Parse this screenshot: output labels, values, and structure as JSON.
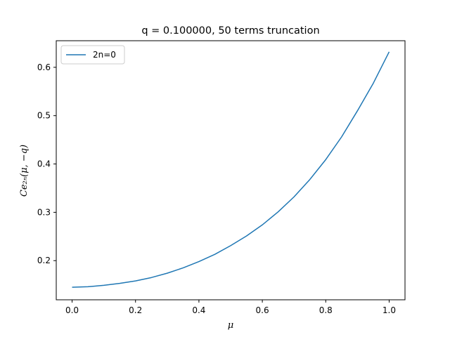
{
  "chart_data": {
    "type": "line",
    "title": "q = 0.100000, 50 terms truncation",
    "xlabel": "μ",
    "ylabel": "Ce₂ₙ(μ, −q)",
    "xlim": [
      -0.05,
      1.05
    ],
    "ylim": [
      0.119,
      0.655
    ],
    "xticks": [
      0.0,
      0.2,
      0.4,
      0.6,
      0.8,
      1.0
    ],
    "xtick_labels": [
      "0.0",
      "0.2",
      "0.4",
      "0.6",
      "0.8",
      "1.0"
    ],
    "yticks": [
      0.2,
      0.3,
      0.4,
      0.5,
      0.6
    ],
    "ytick_labels": [
      "0.2",
      "0.3",
      "0.4",
      "0.5",
      "0.6"
    ],
    "grid": false,
    "legend_position": "upper-left",
    "series": [
      {
        "name": "2n=0",
        "color": "#1f77b4",
        "x": [
          0.0,
          0.05,
          0.1,
          0.15,
          0.2,
          0.25,
          0.3,
          0.35,
          0.4,
          0.45,
          0.5,
          0.55,
          0.6,
          0.65,
          0.7,
          0.75,
          0.8,
          0.85,
          0.9,
          0.95,
          1.0
        ],
        "y": [
          0.145,
          0.146,
          0.149,
          0.153,
          0.158,
          0.165,
          0.174,
          0.185,
          0.198,
          0.213,
          0.231,
          0.251,
          0.274,
          0.301,
          0.332,
          0.368,
          0.409,
          0.456,
          0.51,
          0.567,
          0.632
        ]
      }
    ]
  }
}
